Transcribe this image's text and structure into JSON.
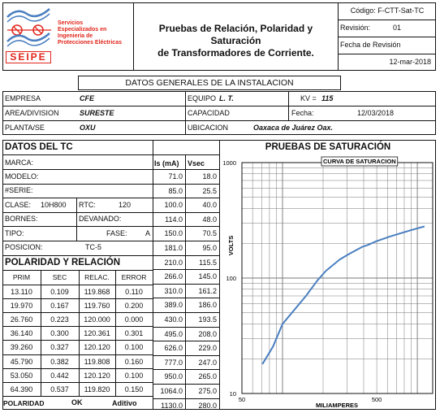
{
  "header": {
    "logo": {
      "company_lines": [
        "Servicios",
        "Especializados en",
        "Ingeniería de",
        "Protecciones Eléctricas"
      ],
      "acronym": "SEIPE",
      "colors": {
        "primary": "#e1251b",
        "accent": "#4a7fc0"
      }
    },
    "title_line1": "Pruebas de Relación, Polaridad y Saturación",
    "title_line2": "de Transformadores de Corriente.",
    "code": "Código: F-CTT-Sat-TC",
    "revision_label": "Revisión:",
    "revision_value": "01",
    "revision_date_label": "Fecha de Revisión",
    "revision_date": "12-mar-2018"
  },
  "install": {
    "section_title": "DATOS GENERALES DE LA INSTALACION",
    "empresa_label": "EMPRESA",
    "empresa": "CFE",
    "equipo_label": "EQUIPO",
    "equipo": "L. T.",
    "kv_label": "KV =",
    "kv": "115",
    "area_label": "AREA/DIVISION",
    "area": "SURESTE",
    "capacidad_label": "CAPACIDAD",
    "fecha_label": "Fecha:",
    "fecha": "12/03/2018",
    "planta_label": "PLANTA/SE",
    "planta": "OXU",
    "ubicacion_label": "UBICACION",
    "ubicacion": "Oaxaca de Juárez Oax."
  },
  "tc": {
    "section_title": "DATOS DEL TC",
    "marca_label": "MARCA:",
    "modelo_label": "MODELO:",
    "serie_label": "#SERIE:",
    "clase_label": "CLASE:",
    "clase": "10H800",
    "rtc_label": "RTC:",
    "rtc": "120",
    "bornes_label": "BORNES:",
    "devanado_label": "DEVANADO:",
    "tipo_label": "TIPO:",
    "fase_label": "FASE:",
    "fase": "A",
    "posicion_label": "POSICION:",
    "posicion": "TC-5"
  },
  "saturation_table": {
    "headers": [
      "Is (mA)",
      "Vsec"
    ],
    "rows": [
      [
        "71.0",
        "18.0"
      ],
      [
        "85.0",
        "25.5"
      ],
      [
        "100.0",
        "40.0"
      ],
      [
        "114.0",
        "48.0"
      ],
      [
        "150.0",
        "70.5"
      ],
      [
        "181.0",
        "95.0"
      ],
      [
        "210.0",
        "115.5"
      ],
      [
        "266.0",
        "145.0"
      ],
      [
        "310.0",
        "161.2"
      ],
      [
        "389.0",
        "186.0"
      ],
      [
        "430.0",
        "193.5"
      ],
      [
        "495.0",
        "208.0"
      ],
      [
        "626.0",
        "229.0"
      ],
      [
        "777.0",
        "247.0"
      ],
      [
        "950.0",
        "265.0"
      ],
      [
        "1064.0",
        "275.0"
      ],
      [
        "1130.0",
        "280.0"
      ]
    ]
  },
  "polarity": {
    "section_title": "POLARIDAD Y RELACIÓN",
    "headers": [
      "PRIM",
      "SEC",
      "RELAC.",
      "ERROR"
    ],
    "rows": [
      [
        "13.110",
        "0.109",
        "119.868",
        "0.110"
      ],
      [
        "19.970",
        "0.167",
        "119.760",
        "0.200"
      ],
      [
        "26.760",
        "0.223",
        "120.000",
        "0.000"
      ],
      [
        "36.140",
        "0.300",
        "120.361",
        "0.301"
      ],
      [
        "39.260",
        "0.327",
        "120.120",
        "0.100"
      ],
      [
        "45.790",
        "0.382",
        "119.808",
        "0.160"
      ],
      [
        "53.050",
        "0.442",
        "120.120",
        "0.100"
      ],
      [
        "64.390",
        "0.537",
        "119.820",
        "0.150"
      ]
    ],
    "polaridad_label": "POLARIDAD",
    "polaridad_value": "OK",
    "polaridad_type": "Aditivo"
  },
  "chart_section_title": "PRUEBAS DE SATURACIÓN",
  "chart_data": {
    "type": "line",
    "title": "CURVA DE SATURACION",
    "xlabel": "MILIAMPERES",
    "ylabel": "VOLTS",
    "xscale": "log",
    "yscale": "log",
    "xlim": [
      50,
      1300
    ],
    "ylim": [
      10,
      1000
    ],
    "x_tick_labels": [
      "50",
      "500"
    ],
    "y_tick_labels": [
      "1000",
      "100",
      "10"
    ],
    "line_color": "#4a7fc0",
    "x": [
      71,
      85,
      100,
      114,
      150,
      181,
      210,
      266,
      310,
      389,
      430,
      495,
      626,
      777,
      950,
      1064,
      1130
    ],
    "y": [
      18,
      25.5,
      40,
      48,
      70.5,
      95,
      115.5,
      145,
      161.2,
      186,
      193.5,
      208,
      229,
      247,
      265,
      275,
      280
    ]
  }
}
